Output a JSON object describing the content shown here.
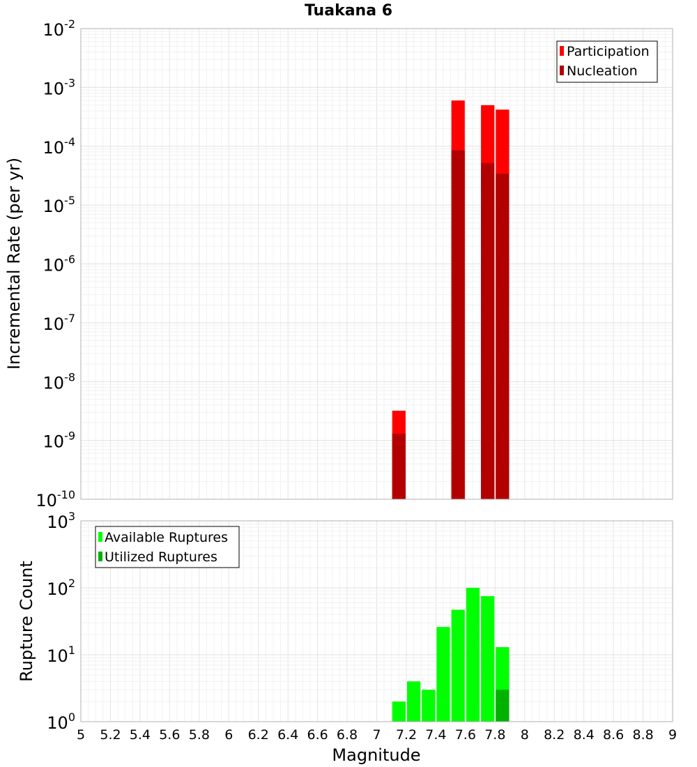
{
  "chart_data": {
    "title": "Tuakana 6",
    "type": "bar",
    "xlabel": "Magnitude",
    "xlim": [
      5,
      9
    ],
    "xticks": [
      "5",
      "5.2",
      "5.4",
      "5.6",
      "5.8",
      "6",
      "6.2",
      "6.4",
      "6.6",
      "6.8",
      "7",
      "7.2",
      "7.4",
      "7.6",
      "7.8",
      "8",
      "8.2",
      "8.4",
      "8.6",
      "8.8",
      "9"
    ],
    "bin_width": 0.1,
    "panels": [
      {
        "ylabel": "Incremental Rate (per yr)",
        "yscale": "log",
        "ylim_exp": [
          -10,
          -2
        ],
        "legend_position": "top-right",
        "series": [
          {
            "name": "Participation",
            "color": "#ff0000",
            "x": [
              7.15,
              7.55,
              7.75,
              7.85
            ],
            "values": [
              3.2e-09,
              0.0006,
              0.0005,
              0.00042
            ]
          },
          {
            "name": "Nucleation",
            "color": "#b20000",
            "x": [
              7.15,
              7.55,
              7.75,
              7.85
            ],
            "values": [
              1.3e-09,
              8.5e-05,
              5.2e-05,
              3.4e-05
            ]
          }
        ]
      },
      {
        "ylabel": "Rupture Count",
        "yscale": "log",
        "ylim_exp": [
          0,
          3
        ],
        "legend_position": "top-left",
        "series": [
          {
            "name": "Available Ruptures",
            "color": "#00ff00",
            "x": [
              6.75,
              7.05,
              7.15,
              7.25,
              7.35,
              7.45,
              7.55,
              7.65,
              7.75,
              7.85
            ],
            "values": [
              1,
              1,
              2,
              4,
              3,
              26,
              47,
              100,
              75,
              13
            ]
          },
          {
            "name": "Utilized Ruptures",
            "color": "#00b200",
            "x": [
              7.15,
              7.55,
              7.75,
              7.85
            ],
            "values": [
              1,
              1,
              1,
              3
            ]
          }
        ]
      }
    ]
  }
}
